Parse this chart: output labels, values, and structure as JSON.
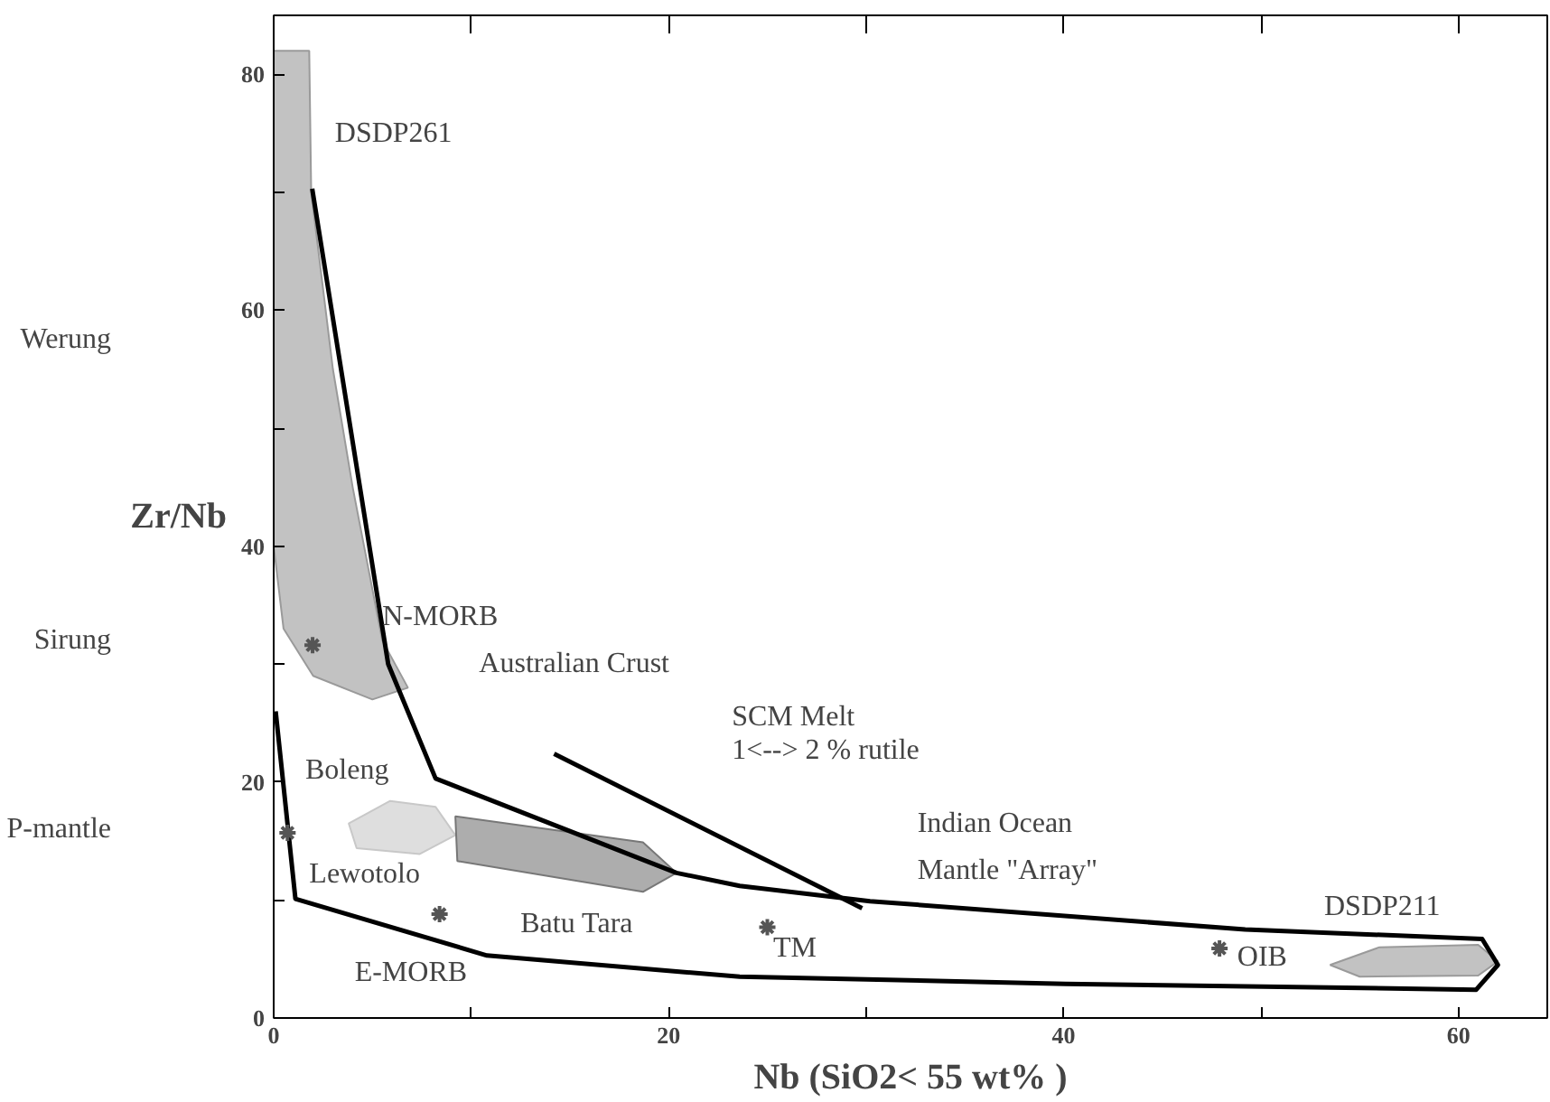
{
  "chart_data": {
    "type": "scatter",
    "xlabel": "Nb (SiO2< 55 wt% )",
    "ylabel": "Zr/Nb",
    "xlim": [
      0,
      64.5
    ],
    "ylim": [
      0,
      85
    ],
    "xticks": [
      0,
      {
        "value": 10,
        "label": null
      },
      20,
      {
        "value": 30,
        "label": null
      },
      40,
      {
        "value": 50,
        "label": null
      },
      60
    ],
    "yticks": [
      0,
      {
        "value": 10,
        "label": null
      },
      20,
      {
        "value": 30,
        "label": null
      },
      40,
      {
        "value": 50,
        "label": null
      },
      60,
      {
        "value": 70,
        "label": null
      },
      80
    ],
    "grid": false,
    "series": [
      {
        "type": "area",
        "color": "#9a9a9a",
        "x": [
          0,
          1.8,
          1.9,
          3,
          4,
          5.5,
          6.8,
          5,
          2,
          0.5,
          0
        ],
        "values": [
          82,
          82,
          70,
          55,
          45,
          32,
          28,
          27,
          29,
          33,
          40
        ]
      },
      {
        "type": "area",
        "color": "#9a9a9a",
        "x": [
          53.5,
          56,
          61,
          62,
          61,
          55
        ],
        "values": [
          4.5,
          6,
          6.2,
          4.8,
          3.6,
          3.5
        ]
      },
      {
        "type": "area",
        "color": "#c8c8c8",
        "x": [
          3.8,
          5.9,
          8.2,
          9.2,
          7.4,
          4.2
        ],
        "values": [
          16.5,
          18.4,
          17.9,
          15.5,
          13.9,
          14.4
        ]
      },
      {
        "type": "area",
        "color": "#777777",
        "x": [
          9.2,
          18.7,
          20.4,
          18.7,
          9.3
        ],
        "values": [
          17.1,
          14.9,
          12.3,
          10.7,
          13.3
        ]
      },
      {
        "type": "line",
        "color": "#000000",
        "x": [
          1.95,
          5.8,
          8.2,
          20.4,
          23.6,
          30.2,
          49.2,
          61.2,
          62,
          60.9,
          40.1,
          23.6,
          10.8,
          1.1,
          0.1
        ],
        "values": [
          70.3,
          30,
          20.3,
          12.3,
          11.2,
          9.9,
          7.5,
          6.7,
          4.5,
          2.4,
          2.9,
          3.5,
          5.3,
          10.1,
          26
        ]
      },
      {
        "type": "line",
        "color": "#000000",
        "x": [
          29.8,
          14.2
        ],
        "values": [
          9.3,
          22.4
        ]
      },
      {
        "color": "#555555",
        "marker": "cross",
        "x": [
          1.97,
          0.7,
          8.4,
          25.0,
          47.9
        ],
        "values": [
          31.6,
          15.7,
          8.8,
          7.7,
          5.9
        ]
      }
    ],
    "annotations": [
      "DSDP261",
      "Werung",
      "Sirung",
      "N-MORB",
      "Australian Crust",
      "SCM Melt",
      "1<--> 2 % rutile",
      "Boleng",
      "P-mantle",
      "Lewotolo",
      "Batu Tara",
      "E-MORB",
      "TM",
      "Indian Ocean",
      "Mantle \"Array\"",
      "DSDP211",
      "OIB"
    ]
  }
}
